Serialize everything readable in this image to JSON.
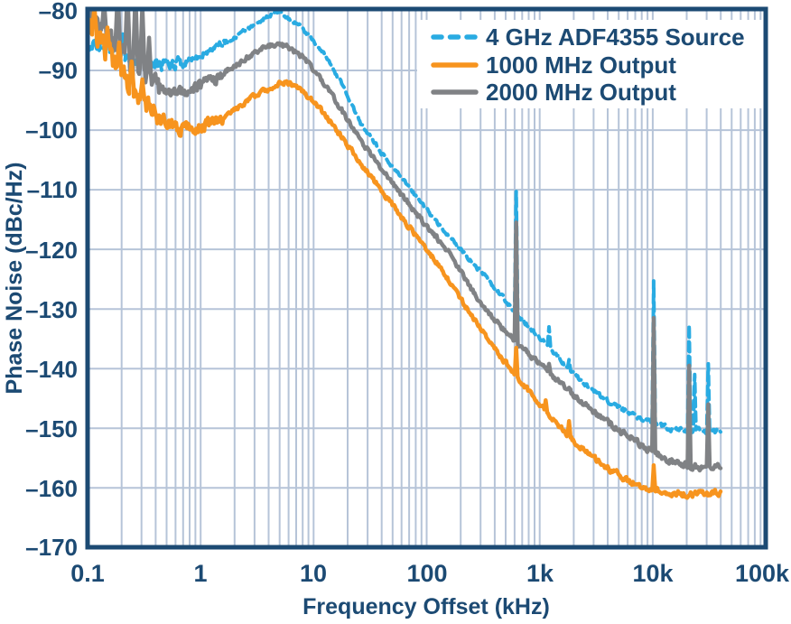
{
  "styles": {
    "background": "#FFFFFF",
    "axis_color": "#1C4A73",
    "text_color": "#1C4A73",
    "grid_color": "#B6C4D8",
    "cyan": "#29ABE2",
    "orange": "#F7941E",
    "gray": "#808285"
  },
  "legend": {
    "items": [
      {
        "label": "4 GHz ADF4355 Source",
        "color": "#29ABE2",
        "dashed": true
      },
      {
        "label": "1000 MHz Output",
        "color": "#F7941E",
        "dashed": false
      },
      {
        "label": "2000 MHz Output",
        "color": "#808285",
        "dashed": false
      }
    ]
  },
  "chart_data": {
    "type": "line",
    "title": "",
    "xlabel": "Frequency Offset (kHz)",
    "ylabel": "Phase Noise (dBc/Hz)",
    "xscale": "log",
    "xlim": [
      0.1,
      100000
    ],
    "ylim": [
      -170,
      -80
    ],
    "grid": true,
    "legend_position": "top-right",
    "x_ticks": [
      {
        "value": 0.1,
        "label": "0.1"
      },
      {
        "value": 1,
        "label": "1"
      },
      {
        "value": 10,
        "label": "10"
      },
      {
        "value": 100,
        "label": "100"
      },
      {
        "value": 1000,
        "label": "1k"
      },
      {
        "value": 10000,
        "label": "10k"
      },
      {
        "value": 100000,
        "label": "100k"
      }
    ],
    "y_ticks": [
      {
        "value": -80,
        "label": "–80"
      },
      {
        "value": -90,
        "label": "–90"
      },
      {
        "value": -100,
        "label": "–100"
      },
      {
        "value": -110,
        "label": "–110"
      },
      {
        "value": -120,
        "label": "–120"
      },
      {
        "value": -130,
        "label": "–130"
      },
      {
        "value": -140,
        "label": "–140"
      },
      {
        "value": -150,
        "label": "–150"
      },
      {
        "value": -160,
        "label": "–160"
      },
      {
        "value": -170,
        "label": "–170"
      }
    ],
    "series": [
      {
        "name": "4 GHz ADF4355 Source",
        "color": "#29ABE2",
        "line_style": "dashed",
        "line_width": 4,
        "seed": 11,
        "noise": [
          [
            -1,
            0.9
          ],
          [
            -0.15,
            0.5
          ],
          [
            0.25,
            0.28
          ],
          [
            3.5,
            0.4
          ]
        ],
        "points": [
          [
            0.1,
            -85.3
          ],
          [
            0.141,
            -86.2
          ],
          [
            0.2,
            -87.1
          ],
          [
            0.282,
            -88.2
          ],
          [
            0.398,
            -88.9
          ],
          [
            0.5,
            -89.1
          ],
          [
            0.71,
            -88.7
          ],
          [
            1,
            -87.6
          ],
          [
            1.41,
            -86.1
          ],
          [
            2,
            -84.5
          ],
          [
            2.82,
            -82.6
          ],
          [
            3.8,
            -81.0
          ],
          [
            4.6,
            -80.3
          ],
          [
            5.6,
            -80.8
          ],
          [
            7.6,
            -82.6
          ],
          [
            10,
            -84.9
          ],
          [
            12.6,
            -87.3
          ],
          [
            17.8,
            -92.2
          ],
          [
            26,
            -98.9
          ],
          [
            40,
            -103.8
          ],
          [
            72,
            -110
          ],
          [
            120,
            -115.2
          ],
          [
            200,
            -120
          ],
          [
            355,
            -125.3
          ],
          [
            580,
            -130
          ],
          [
            830,
            -133.3
          ],
          [
            1200,
            -136.3
          ],
          [
            1800,
            -140.1
          ],
          [
            2600,
            -142.8
          ],
          [
            3800,
            -145
          ],
          [
            5500,
            -146.9
          ],
          [
            7800,
            -148.2
          ],
          [
            10000,
            -148.9
          ],
          [
            13000,
            -149.8
          ],
          [
            16000,
            -150.3
          ],
          [
            22000,
            -150.4
          ],
          [
            30000,
            -150.5
          ],
          [
            40000,
            -150.4
          ]
        ],
        "spurs": [
          {
            "f": 0.15,
            "tip": -83.6,
            "w": 0.02
          },
          {
            "f": 0.205,
            "tip": -83.9,
            "w": 0.02
          },
          {
            "f": 0.3,
            "tip": -85.2,
            "w": 0.02
          },
          {
            "f": 620,
            "tip": -110.3,
            "w": 0.014
          },
          {
            "f": 1210,
            "tip": -133,
            "w": 0.014
          },
          {
            "f": 1820,
            "tip": -138.5,
            "w": 0.014
          },
          {
            "f": 10200,
            "tip": -125.3,
            "w": 0.014
          },
          {
            "f": 21000,
            "tip": -132.7,
            "w": 0.014
          },
          {
            "f": 23500,
            "tip": -141,
            "w": 0.012
          },
          {
            "f": 31000,
            "tip": -139.2,
            "w": 0.013
          }
        ]
      },
      {
        "name": "2000 MHz Output",
        "color": "#808285",
        "line_style": "solid",
        "line_width": 4.5,
        "seed": 23,
        "noise": [
          [
            -1,
            1.45
          ],
          [
            -0.32,
            0.8
          ],
          [
            0.2,
            0.34
          ],
          [
            3.6,
            0.45
          ]
        ],
        "points": [
          [
            0.1,
            -81.5
          ],
          [
            0.132,
            -83.5
          ],
          [
            0.178,
            -86.2
          ],
          [
            0.24,
            -89
          ],
          [
            0.316,
            -91.2
          ],
          [
            0.42,
            -92.9
          ],
          [
            0.56,
            -93.8
          ],
          [
            0.76,
            -93.4
          ],
          [
            1,
            -92.5
          ],
          [
            1.41,
            -91
          ],
          [
            2,
            -89.2
          ],
          [
            2.82,
            -87.3
          ],
          [
            3.8,
            -86
          ],
          [
            4.8,
            -85.6
          ],
          [
            6,
            -86.1
          ],
          [
            7.9,
            -87.7
          ],
          [
            10.5,
            -90.3
          ],
          [
            14,
            -93.7
          ],
          [
            20,
            -98.3
          ],
          [
            28,
            -102.6
          ],
          [
            55,
            -110
          ],
          [
            89,
            -115
          ],
          [
            151,
            -120
          ],
          [
            240,
            -126.3
          ],
          [
            330,
            -130
          ],
          [
            500,
            -133.8
          ],
          [
            750,
            -137
          ],
          [
            1175,
            -140.5
          ],
          [
            1900,
            -144
          ],
          [
            3100,
            -147.5
          ],
          [
            5250,
            -150.5
          ],
          [
            8000,
            -152.8
          ],
          [
            12000,
            -154.8
          ],
          [
            18000,
            -156.1
          ],
          [
            25000,
            -156.5
          ],
          [
            40000,
            -156.4
          ]
        ],
        "spurs": [
          {
            "f": 0.14,
            "tip": -78.5,
            "w": 0.022
          },
          {
            "f": 0.185,
            "tip": -76.5,
            "w": 0.022
          },
          {
            "f": 0.225,
            "tip": -76,
            "w": 0.022
          },
          {
            "f": 0.265,
            "tip": -76.8,
            "w": 0.022
          },
          {
            "f": 0.305,
            "tip": -79,
            "w": 0.022
          },
          {
            "f": 0.35,
            "tip": -84.5,
            "w": 0.02
          },
          {
            "f": 620,
            "tip": -115.5,
            "w": 0.014
          },
          {
            "f": 1210,
            "tip": -139.2,
            "w": 0.014
          },
          {
            "f": 1820,
            "tip": -143.2,
            "w": 0.014
          },
          {
            "f": 10200,
            "tip": -131.5,
            "w": 0.014
          },
          {
            "f": 21000,
            "tip": -139.5,
            "w": 0.014
          },
          {
            "f": 31000,
            "tip": -146,
            "w": 0.013
          }
        ]
      },
      {
        "name": "1000 MHz Output",
        "color": "#F7941E",
        "line_style": "solid",
        "line_width": 4.5,
        "seed": 37,
        "noise": [
          [
            -1,
            1.55
          ],
          [
            -0.38,
            0.9
          ],
          [
            0.2,
            0.34
          ],
          [
            3.6,
            0.45
          ]
        ],
        "points": [
          [
            0.1,
            -81.8
          ],
          [
            0.12,
            -84
          ],
          [
            0.158,
            -87.6
          ],
          [
            0.21,
            -91
          ],
          [
            0.282,
            -94.4
          ],
          [
            0.38,
            -97
          ],
          [
            0.5,
            -98.7
          ],
          [
            0.66,
            -99.7
          ],
          [
            0.89,
            -99.8
          ],
          [
            1.26,
            -98.8
          ],
          [
            1.78,
            -97.2
          ],
          [
            2.5,
            -95.3
          ],
          [
            3.55,
            -93.5
          ],
          [
            4.8,
            -92.3
          ],
          [
            5.6,
            -92
          ],
          [
            7.1,
            -92.7
          ],
          [
            9.3,
            -94.6
          ],
          [
            12.6,
            -97.4
          ],
          [
            17.8,
            -101.2
          ],
          [
            26,
            -105.5
          ],
          [
            40,
            -110.2
          ],
          [
            63,
            -115.1
          ],
          [
            100,
            -120
          ],
          [
            145,
            -124.2
          ],
          [
            200,
            -128.4
          ],
          [
            282,
            -132.6
          ],
          [
            400,
            -136.6
          ],
          [
            560,
            -140.2
          ],
          [
            800,
            -143.8
          ],
          [
            1120,
            -147
          ],
          [
            1510,
            -149.8
          ],
          [
            2140,
            -152.6
          ],
          [
            3000,
            -155
          ],
          [
            4470,
            -157.3
          ],
          [
            6300,
            -158.9
          ],
          [
            9120,
            -160.2
          ],
          [
            12600,
            -160.8
          ],
          [
            20000,
            -161.1
          ],
          [
            28000,
            -160.9
          ],
          [
            40000,
            -160.9
          ]
        ],
        "spurs": [
          {
            "f": 0.115,
            "tip": -79.5,
            "w": 0.02
          },
          {
            "f": 0.15,
            "tip": -82.8,
            "w": 0.02
          },
          {
            "f": 0.19,
            "tip": -85.3,
            "w": 0.02
          },
          {
            "f": 0.245,
            "tip": -88.5,
            "w": 0.02
          },
          {
            "f": 0.305,
            "tip": -91.5,
            "w": 0.02
          },
          {
            "f": 620,
            "tip": -136.5,
            "w": 0.013
          },
          {
            "f": 1130,
            "tip": -145.3,
            "w": 0.013
          },
          {
            "f": 1820,
            "tip": -148.8,
            "w": 0.013
          },
          {
            "f": 10200,
            "tip": -156.2,
            "w": 0.013
          }
        ]
      }
    ]
  }
}
